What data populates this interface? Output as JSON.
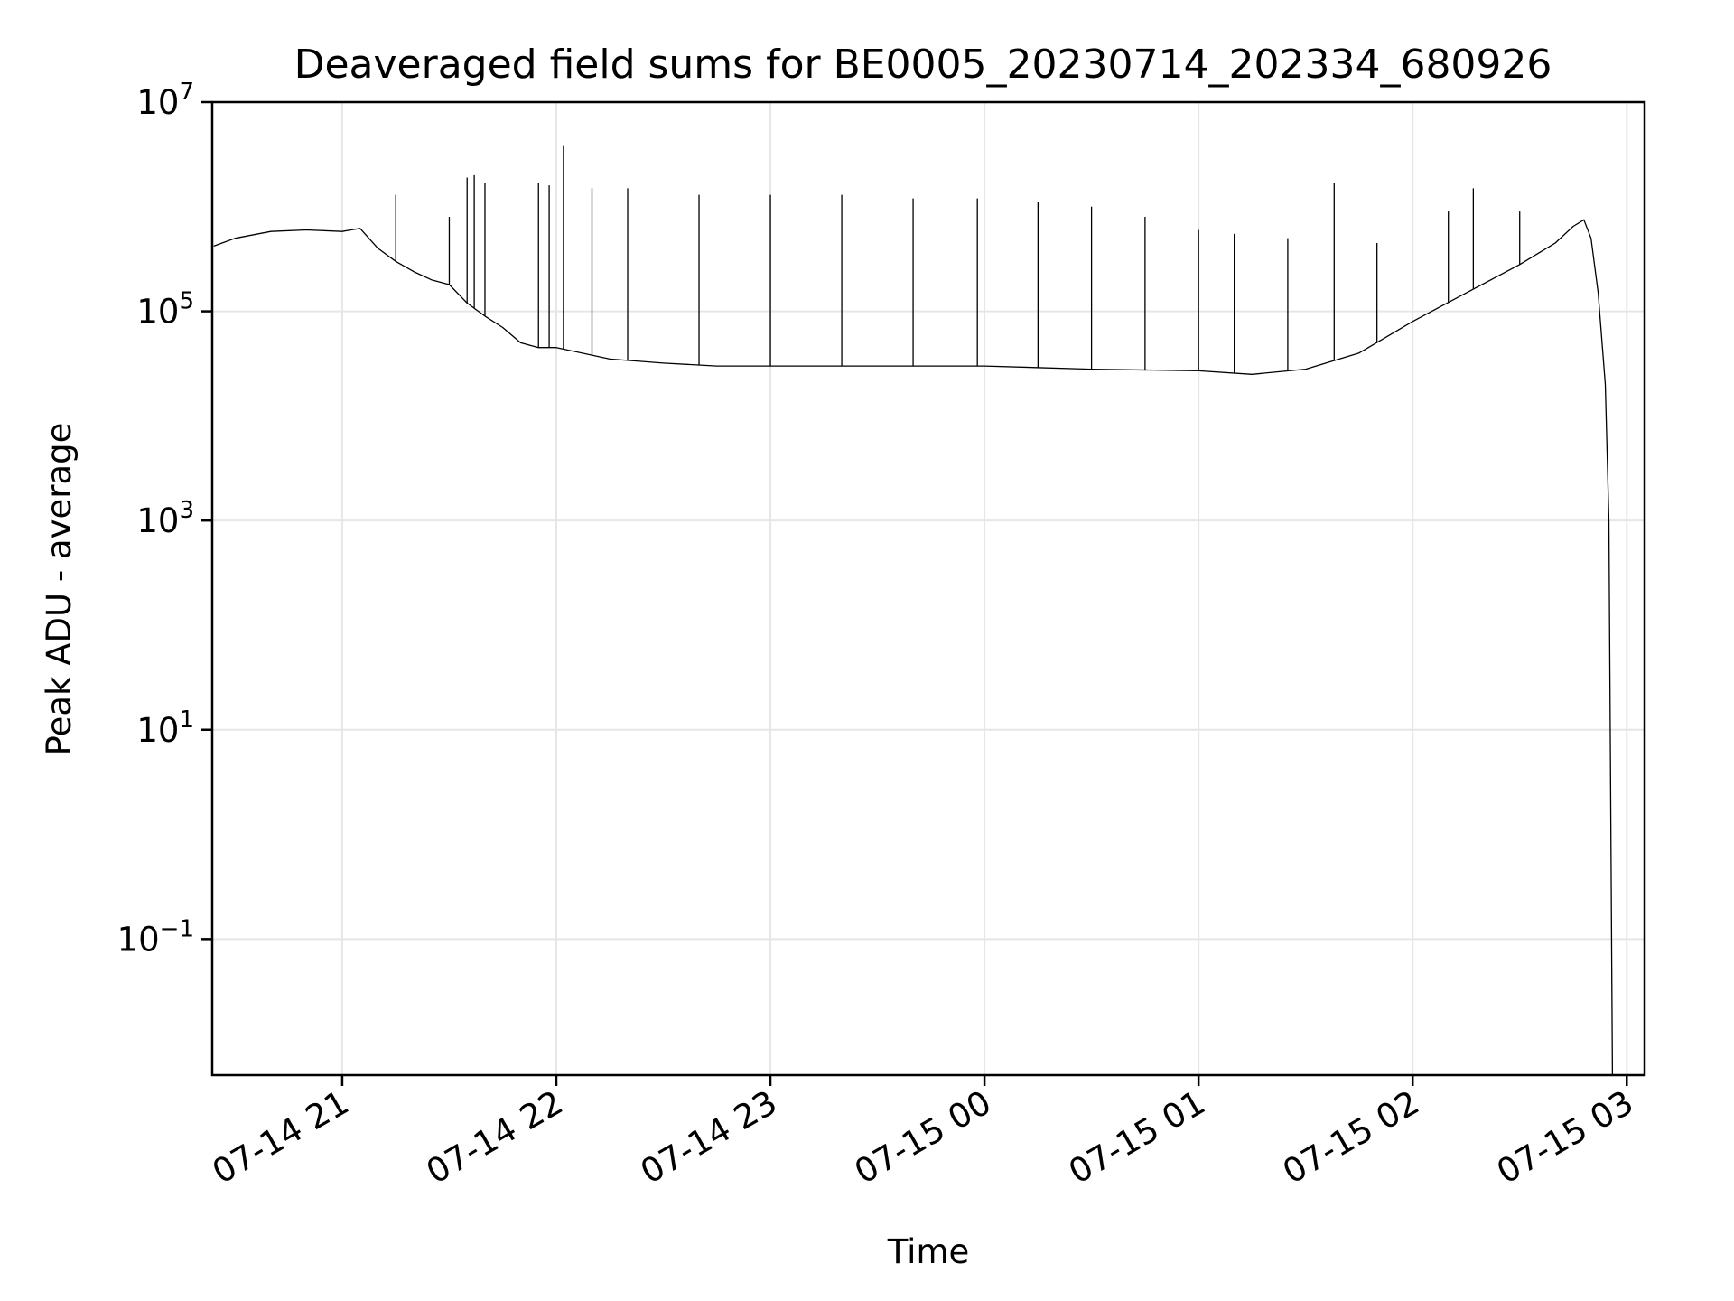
{
  "chart_data": {
    "type": "line",
    "title": "Deaveraged field sums for BE0005_20230714_202334_680926",
    "xlabel": "Time",
    "ylabel": "Peak ADU - average",
    "y_scale": "log",
    "grid": true,
    "color": "#000000",
    "xlim": [
      "2023-07-14 20:23:34",
      "2023-07-15 03:05:00"
    ],
    "ylim": [
      0.005,
      10000000
    ],
    "x_ticks": [
      {
        "value": "2023-07-14 21:00",
        "label": "07-14 21"
      },
      {
        "value": "2023-07-14 22:00",
        "label": "07-14 22"
      },
      {
        "value": "2023-07-14 23:00",
        "label": "07-14 23"
      },
      {
        "value": "2023-07-15 00:00",
        "label": "07-15 00"
      },
      {
        "value": "2023-07-15 01:00",
        "label": "07-15 01"
      },
      {
        "value": "2023-07-15 02:00",
        "label": "07-15 02"
      },
      {
        "value": "2023-07-15 03:00",
        "label": "07-15 03"
      }
    ],
    "y_ticks": [
      {
        "value": 0.1,
        "base": "10",
        "exp": "−1"
      },
      {
        "value": 10,
        "base": "10",
        "exp": "1"
      },
      {
        "value": 1000,
        "base": "10",
        "exp": "3"
      },
      {
        "value": 100000,
        "base": "10",
        "exp": "5"
      },
      {
        "value": 10000000,
        "base": "10",
        "exp": "7"
      }
    ],
    "series": [
      {
        "x": [
          "2023-07-14 20:24",
          "2023-07-14 20:30",
          "2023-07-14 20:40",
          "2023-07-14 20:50",
          "2023-07-14 21:00",
          "2023-07-14 21:05",
          "2023-07-14 21:10",
          "2023-07-14 21:15",
          "2023-07-14 21:20",
          "2023-07-14 21:25",
          "2023-07-14 21:30",
          "2023-07-14 21:35",
          "2023-07-14 21:40",
          "2023-07-14 21:45",
          "2023-07-14 21:50",
          "2023-07-14 21:55",
          "2023-07-14 22:00",
          "2023-07-14 22:15",
          "2023-07-14 22:30",
          "2023-07-14 22:45",
          "2023-07-14 23:00",
          "2023-07-14 23:30",
          "2023-07-15 00:00",
          "2023-07-15 00:30",
          "2023-07-15 01:00",
          "2023-07-15 01:15",
          "2023-07-15 01:30",
          "2023-07-15 01:45",
          "2023-07-15 02:00",
          "2023-07-15 02:15",
          "2023-07-15 02:30",
          "2023-07-15 02:40",
          "2023-07-15 02:45",
          "2023-07-15 02:48",
          "2023-07-15 02:50",
          "2023-07-15 02:52",
          "2023-07-15 02:54",
          "2023-07-15 02:55",
          "2023-07-15 02:56"
        ],
        "y": [
          420000,
          500000,
          580000,
          600000,
          580000,
          620000,
          400000,
          300000,
          240000,
          200000,
          180000,
          120000,
          90000,
          70000,
          50000,
          45000,
          45000,
          35000,
          32000,
          30000,
          30000,
          30000,
          30000,
          28000,
          27000,
          25000,
          28000,
          40000,
          80000,
          150000,
          280000,
          450000,
          650000,
          750000,
          500000,
          150000,
          20000,
          1000,
          0.004
        ],
        "spikes": [
          {
            "x": "2023-07-14 21:15",
            "y": 1300000
          },
          {
            "x": "2023-07-14 21:30",
            "y": 800000
          },
          {
            "x": "2023-07-14 21:35",
            "y": 1900000
          },
          {
            "x": "2023-07-14 21:37",
            "y": 2000000
          },
          {
            "x": "2023-07-14 21:40",
            "y": 1700000
          },
          {
            "x": "2023-07-14 21:55",
            "y": 1700000
          },
          {
            "x": "2023-07-14 21:58",
            "y": 1600000
          },
          {
            "x": "2023-07-14 22:02",
            "y": 3800000
          },
          {
            "x": "2023-07-14 22:10",
            "y": 1500000
          },
          {
            "x": "2023-07-14 22:20",
            "y": 1500000
          },
          {
            "x": "2023-07-14 22:40",
            "y": 1300000
          },
          {
            "x": "2023-07-14 23:00",
            "y": 1300000
          },
          {
            "x": "2023-07-14 23:20",
            "y": 1300000
          },
          {
            "x": "2023-07-14 23:40",
            "y": 1200000
          },
          {
            "x": "2023-07-14 23:58",
            "y": 1200000
          },
          {
            "x": "2023-07-15 00:15",
            "y": 1100000
          },
          {
            "x": "2023-07-15 00:30",
            "y": 1000000
          },
          {
            "x": "2023-07-15 00:45",
            "y": 800000
          },
          {
            "x": "2023-07-15 01:00",
            "y": 600000
          },
          {
            "x": "2023-07-15 01:10",
            "y": 550000
          },
          {
            "x": "2023-07-15 01:25",
            "y": 500000
          },
          {
            "x": "2023-07-15 01:38",
            "y": 1700000
          },
          {
            "x": "2023-07-15 01:50",
            "y": 450000
          },
          {
            "x": "2023-07-15 02:10",
            "y": 900000
          },
          {
            "x": "2023-07-15 02:17",
            "y": 1500000
          },
          {
            "x": "2023-07-15 02:30",
            "y": 900000
          }
        ]
      }
    ]
  }
}
